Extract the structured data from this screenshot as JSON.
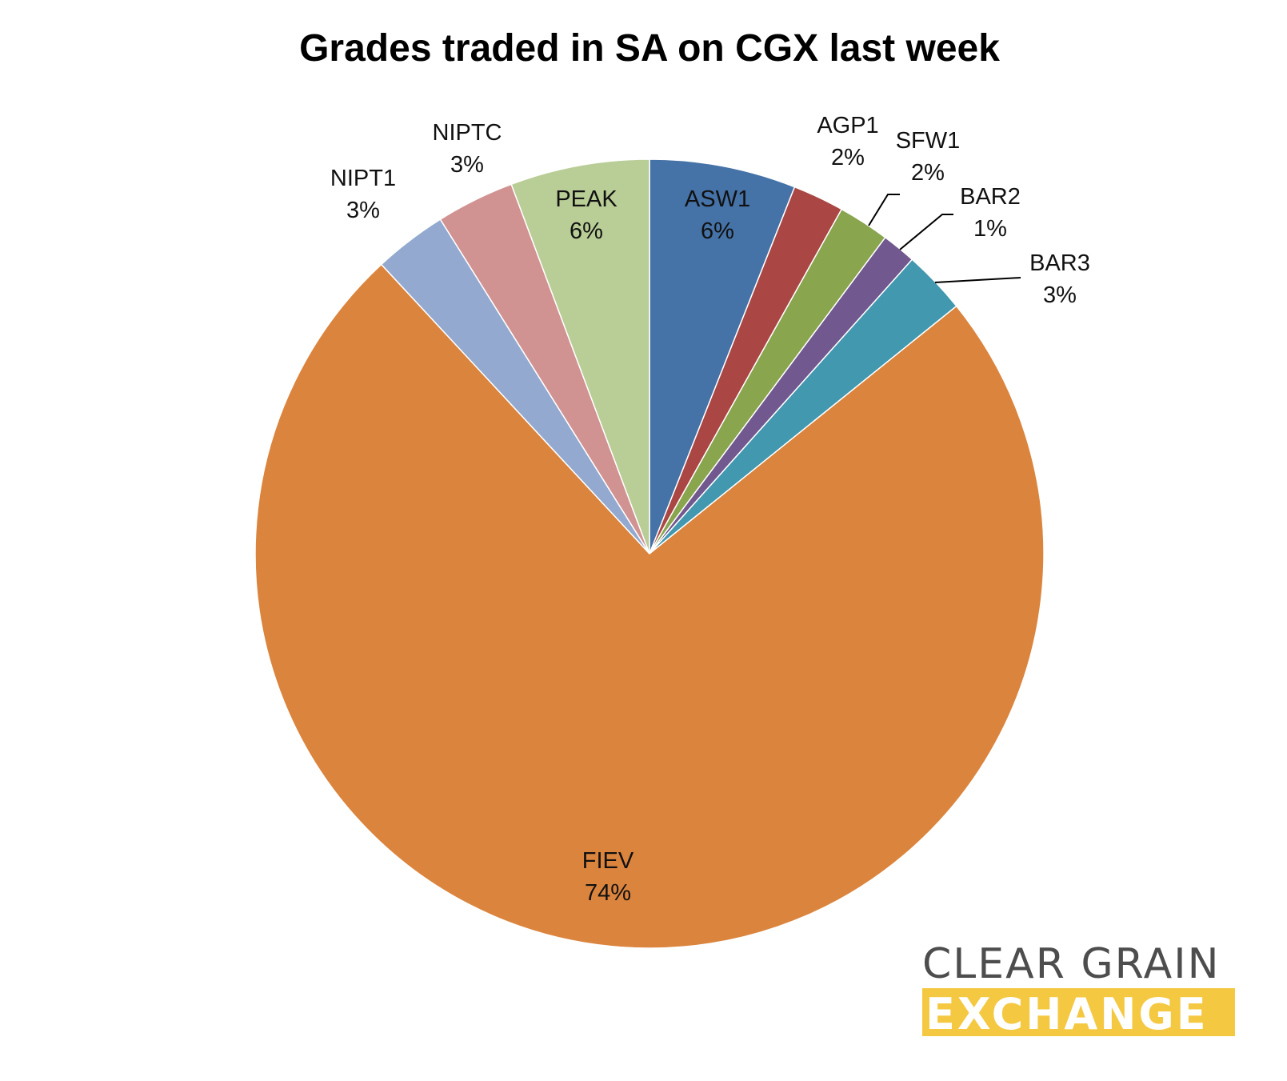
{
  "chart_data": {
    "type": "pie",
    "title": "Grades traded in SA on CGX last week",
    "start_angle_deg": 0,
    "direction": "clockwise",
    "slices": [
      {
        "label": "ASW1",
        "percent_label": "6%",
        "value": 6.0,
        "color": "#4572a7"
      },
      {
        "label": "AGP1",
        "percent_label": "2%",
        "value": 2.1,
        "color": "#aa4643"
      },
      {
        "label": "SFW1",
        "percent_label": "2%",
        "value": 2.1,
        "color": "#89a54e"
      },
      {
        "label": "BAR2",
        "percent_label": "1%",
        "value": 1.4,
        "color": "#71588f"
      },
      {
        "label": "BAR3",
        "percent_label": "3%",
        "value": 2.6,
        "color": "#4198af"
      },
      {
        "label": "FIEV",
        "percent_label": "74%",
        "value": 73.9,
        "color": "#db843d"
      },
      {
        "label": "NIPT1",
        "percent_label": "3%",
        "value": 3.0,
        "color": "#93a9cf"
      },
      {
        "label": "NIPTC",
        "percent_label": "3%",
        "value": 3.2,
        "color": "#d19392"
      },
      {
        "label": "PEAK",
        "percent_label": "6%",
        "value": 5.7,
        "color": "#b9cd96"
      }
    ]
  },
  "logo": {
    "line1": "CLEAR GRAIN",
    "line2": "EXCHANGE",
    "line1_color": "#4d4d4d",
    "line2_bg_color": "#f5c842",
    "line2_text_color": "#ffffff"
  }
}
